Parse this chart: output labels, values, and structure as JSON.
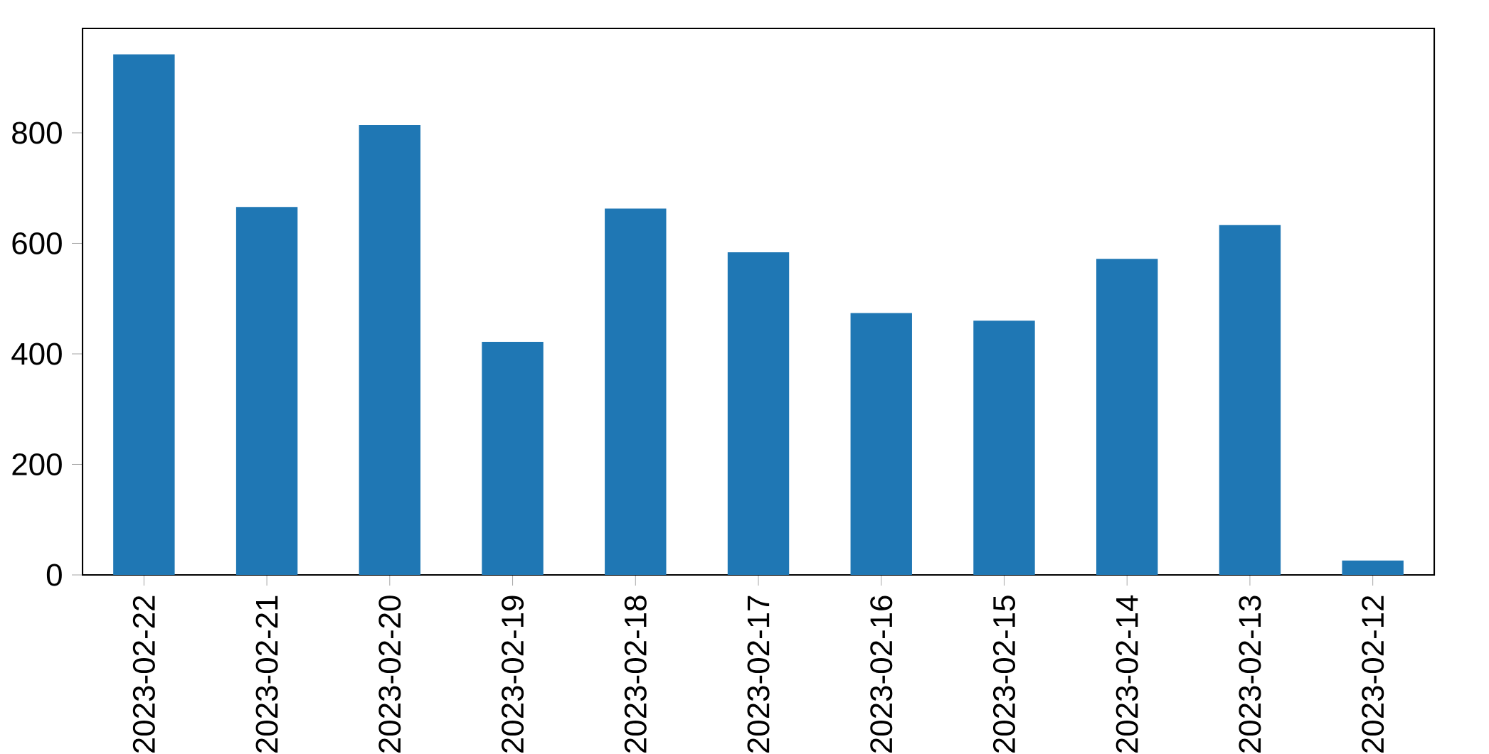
{
  "chart_data": {
    "type": "bar",
    "categories": [
      "2023-02-22",
      "2023-02-21",
      "2023-02-20",
      "2023-02-19",
      "2023-02-18",
      "2023-02-17",
      "2023-02-16",
      "2023-02-15",
      "2023-02-14",
      "2023-02-13",
      "2023-02-12"
    ],
    "values": [
      942,
      666,
      814,
      422,
      663,
      584,
      474,
      460,
      572,
      633,
      26
    ],
    "color": "#1f77b4",
    "ylim": [
      0,
      989
    ],
    "yticks": [
      0,
      200,
      400,
      600,
      800
    ]
  }
}
